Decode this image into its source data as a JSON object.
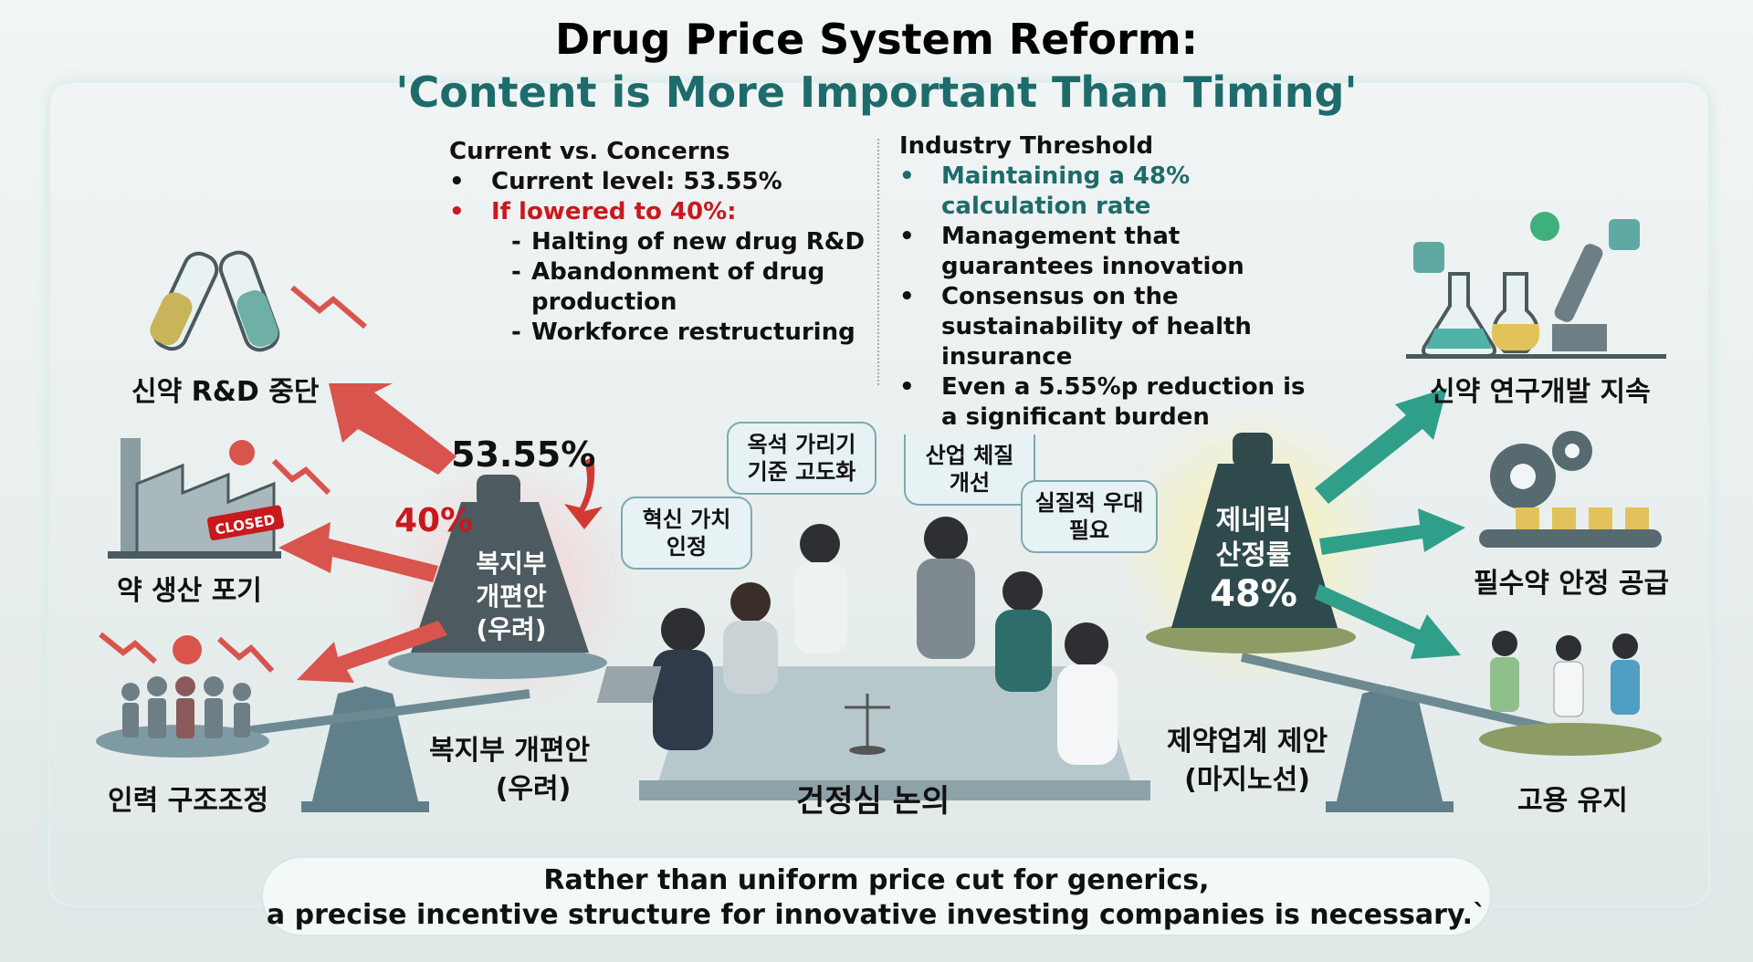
{
  "title": {
    "line1": "Drug Price System Reform:",
    "line2": "'Content is More Important Than Timing'"
  },
  "left_column": {
    "heading": "Current vs. Concerns",
    "bullet1": "Current level: 53.55%",
    "bullet2": "If lowered to 40%:",
    "subitems": [
      "Halting of new drug R&D",
      "Abandonment of drug production",
      "Workforce restructuring"
    ]
  },
  "right_column": {
    "heading": "Industry Threshold",
    "bullets": [
      "Maintaining a 48% calculation rate",
      "Management that guarantees innovation",
      "Consensus on the sustainability of health insurance",
      "Even a 5.55%p reduction is a significant burden"
    ]
  },
  "illustration": {
    "left_labels": [
      "신약 R&D 중단",
      "약 생산 포기",
      "인력 구조조정"
    ],
    "closed_sign": "CLOSED",
    "current_pct": "53.55%",
    "lowered_pct": "40%",
    "left_weight": "복지부 개편안 (우려)",
    "left_scale_label": [
      "복지부 개편안",
      "(우려)"
    ],
    "bubbles": [
      "혁신 가치 인정",
      "옥석 가리기 기준 고도화",
      "산업 체질 개선",
      "실질적 우대 필요"
    ],
    "center_label": "건정심 논의",
    "right_weight": [
      "제네릭",
      "산정률",
      "48%"
    ],
    "right_scale_label": [
      "제약업계 제안",
      "(마지노선)"
    ],
    "right_labels": [
      "신약 연구개발 지속",
      "필수약 안정 공급",
      "고용 유지"
    ]
  },
  "footer": {
    "line1": "Rather than uniform price cut for generics,",
    "line2": "a precise incentive structure for innovative investing companies is necessary.`"
  },
  "colors": {
    "accent_teal": "#1e6b6b",
    "alert_red": "#c8191c"
  }
}
